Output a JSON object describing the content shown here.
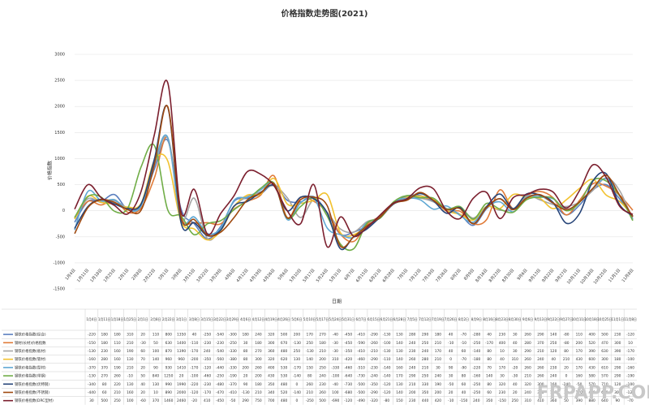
{
  "chart_data": {
    "type": "line",
    "title": "价格指数走势图(2021)",
    "y_label": "价格指数",
    "x_label": "日期",
    "categories": [
      "1月4日",
      "1月11日",
      "1月18日",
      "1月25日",
      "2月1日",
      "2月8日",
      "2月22日",
      "3月1日",
      "3月8日",
      "3月15日",
      "3月22日",
      "3月29日",
      "4月6日",
      "4月12日",
      "4月19日",
      "4月26日",
      "5月6日",
      "5月10日",
      "5月17日",
      "5月24日",
      "5月31日",
      "6月7日",
      "6月15日",
      "6月21日",
      "6月28日",
      "7月5日",
      "7月12日",
      "7月19日",
      "7月26日",
      "8月2日",
      "8月9日",
      "8月16日",
      "8月23日",
      "8月30日",
      "9月6日",
      "9月13日",
      "9月22日",
      "9月27日",
      "10月11日",
      "10月18日",
      "10月25日",
      "11月1日",
      "11月8日"
    ],
    "ylim": [
      -1500,
      3000
    ],
    "yticks": [
      -1500,
      -1000,
      -500,
      0,
      500,
      1000,
      1500,
      2000,
      2500,
      3000
    ],
    "grid": true,
    "series": [
      {
        "name": "钢铁价格指数(综合)",
        "color": "#5b7fbf",
        "values": [
          -220,
          180,
          180,
          310,
          20,
          110,
          800,
          1350,
          40,
          -250,
          -540,
          -300,
          180,
          240,
          320,
          500,
          200,
          170,
          270,
          -40,
          -450,
          -410,
          -290,
          -130,
          130,
          280,
          290,
          180,
          40,
          -70,
          -280,
          40,
          230,
          30,
          260,
          290,
          140,
          -80,
          110,
          400,
          500,
          230,
          -120
        ]
      },
      {
        "name": "钢材(长材)价格指数",
        "color": "#e07b39",
        "values": [
          -150,
          180,
          110,
          210,
          -30,
          50,
          630,
          1400,
          -110,
          -230,
          -230,
          -250,
          30,
          180,
          300,
          670,
          -130,
          250,
          180,
          -30,
          -450,
          -590,
          -260,
          -100,
          140,
          240,
          250,
          210,
          -10,
          -10,
          -250,
          -170,
          400,
          40,
          280,
          370,
          250,
          -80,
          200,
          520,
          470,
          300,
          10
        ]
      },
      {
        "name": "钢铁价格指数(板材)",
        "color": "#a5a5a5",
        "values": [
          -130,
          230,
          160,
          190,
          60,
          100,
          870,
          1390,
          -170,
          240,
          -540,
          -330,
          80,
          270,
          360,
          480,
          250,
          -130,
          210,
          -30,
          -350,
          -410,
          -210,
          -130,
          130,
          230,
          240,
          170,
          40,
          60,
          -140,
          80,
          10,
          30,
          290,
          210,
          120,
          80,
          170,
          390,
          630,
          390,
          -170
        ]
      },
      {
        "name": "钢铁价格指数(管材)",
        "color": "#f2c230",
        "values": [
          -160,
          280,
          160,
          130,
          70,
          140,
          960,
          960,
          -200,
          -350,
          -560,
          -380,
          80,
          300,
          320,
          620,
          130,
          140,
          200,
          310,
          -420,
          -460,
          -290,
          -110,
          140,
          260,
          280,
          210,
          0,
          -70,
          -180,
          80,
          40,
          310,
          260,
          240,
          40,
          210,
          430,
          600,
          300,
          180,
          -100
        ]
      },
      {
        "name": "钢铁价格指数(型材)",
        "color": "#5fa8d3",
        "values": [
          -370,
          370,
          190,
          210,
          20,
          90,
          930,
          1410,
          -170,
          -120,
          -440,
          -330,
          200,
          260,
          400,
          530,
          -170,
          150,
          250,
          -330,
          -460,
          -510,
          -230,
          -140,
          160,
          240,
          210,
          30,
          90,
          -90,
          -220,
          70,
          170,
          -20,
          260,
          260,
          230,
          20,
          170,
          430,
          610,
          290,
          -160
        ]
      },
      {
        "name": "钢铁价格指数(带钢)",
        "color": "#70ad47",
        "values": [
          -130,
          270,
          260,
          -10,
          50,
          840,
          1250,
          20,
          -100,
          -460,
          -250,
          -190,
          20,
          200,
          430,
          530,
          -140,
          80,
          240,
          -100,
          -640,
          -730,
          -240,
          -140,
          170,
          290,
          250,
          240,
          30,
          80,
          -160,
          140,
          30,
          -30,
          210,
          260,
          240,
          0,
          160,
          580,
          570,
          290,
          -190
        ]
      },
      {
        "name": "钢铁价格指数(优特钢)",
        "color": "#264478",
        "values": [
          -340,
          80,
          220,
          130,
          40,
          130,
          990,
          1990,
          -220,
          -230,
          -480,
          -370,
          90,
          180,
          350,
          480,
          0,
          260,
          230,
          -40,
          -730,
          -500,
          -350,
          -120,
          130,
          210,
          330,
          190,
          -50,
          60,
          -250,
          80,
          320,
          40,
          320,
          300,
          160,
          -240,
          -50,
          570,
          710,
          120,
          -100
        ]
      },
      {
        "name": "钢铁价格指数(不锈钢)",
        "color": "#9e480e",
        "values": [
          -440,
          60,
          210,
          160,
          20,
          10,
          890,
          2000,
          -120,
          -170,
          -470,
          -410,
          -130,
          210,
          340,
          520,
          -140,
          210,
          260,
          100,
          -680,
          -500,
          -290,
          -120,
          140,
          200,
          350,
          200,
          20,
          40,
          -250,
          60,
          230,
          20,
          240,
          310,
          150,
          20,
          170,
          430,
          680,
          300,
          -120
        ]
      },
      {
        "name": "钢铁价格指数(DRC型材)",
        "color": "#7b1f2e",
        "values": [
          30,
          500,
          250,
          100,
          -60,
          370,
          1460,
          2460,
          -20,
          410,
          -450,
          -50,
          290,
          750,
          700,
          480,
          0,
          -250,
          500,
          -690,
          -120,
          -490,
          -320,
          -80,
          150,
          230,
          440,
          420,
          -10,
          -150,
          240,
          350,
          -150,
          250,
          310,
          410,
          360,
          50,
          390,
          880,
          640,
          90,
          -70
        ]
      }
    ],
    "watermark": "FRPAPP.COM"
  }
}
